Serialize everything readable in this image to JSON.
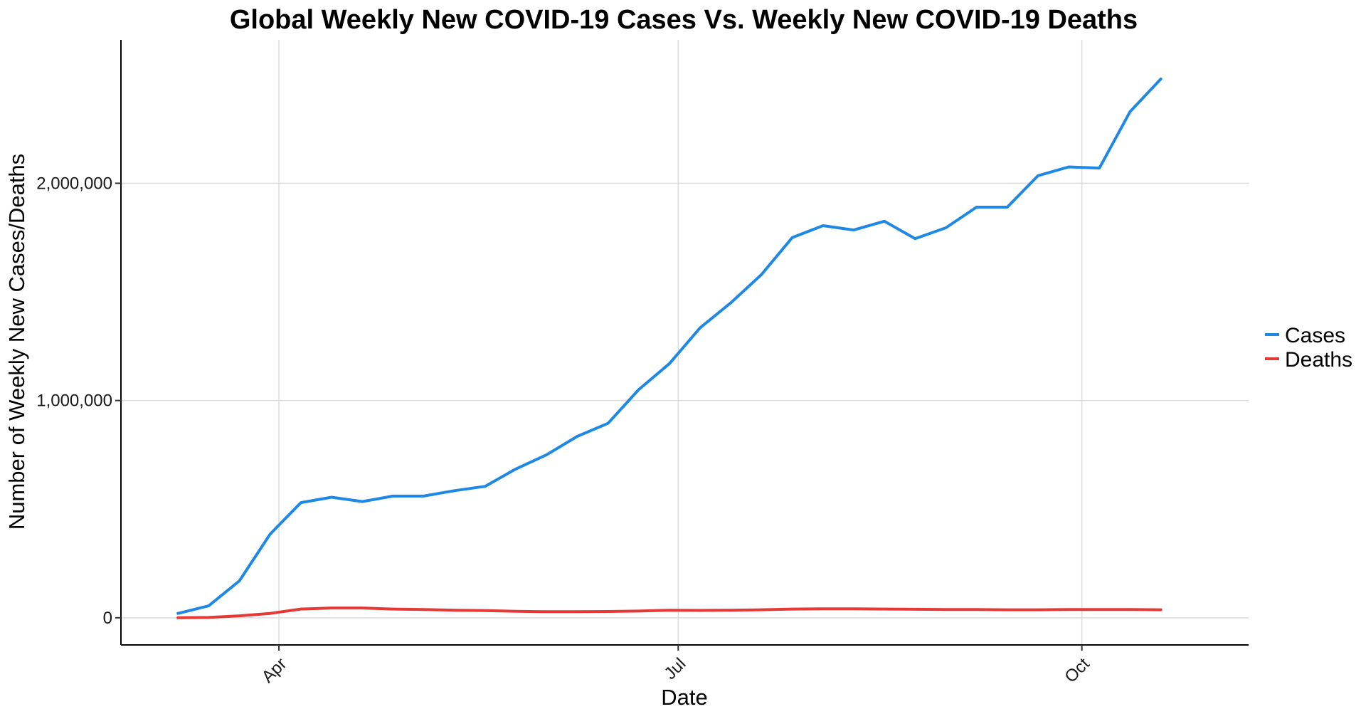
{
  "chart_data": {
    "type": "line",
    "title": "Global Weekly New COVID-19 Cases Vs. Weekly New COVID-19 Deaths",
    "xlabel": "Date",
    "ylabel": "Number of Weekly New Cases/Deaths",
    "x_ticks": [
      {
        "label": "Apr",
        "date": "2020-04-01"
      },
      {
        "label": "Jul",
        "date": "2020-07-01"
      },
      {
        "label": "Oct",
        "date": "2020-10-01"
      }
    ],
    "y_ticks": [
      {
        "label": "0",
        "value": 0
      },
      {
        "label": "1,000,000",
        "value": 1000000
      },
      {
        "label": "2,000,000",
        "value": 2000000
      }
    ],
    "xlim": [
      "2020-02-25",
      "2020-11-08"
    ],
    "ylim": [
      -125000,
      2660000
    ],
    "grid": true,
    "legend_position": "right",
    "x": [
      "2020-03-09",
      "2020-03-16",
      "2020-03-23",
      "2020-03-30",
      "2020-04-06",
      "2020-04-13",
      "2020-04-20",
      "2020-04-27",
      "2020-05-04",
      "2020-05-11",
      "2020-05-18",
      "2020-05-25",
      "2020-06-01",
      "2020-06-08",
      "2020-06-15",
      "2020-06-22",
      "2020-06-29",
      "2020-07-06",
      "2020-07-13",
      "2020-07-20",
      "2020-07-27",
      "2020-08-03",
      "2020-08-10",
      "2020-08-17",
      "2020-08-24",
      "2020-08-31",
      "2020-09-07",
      "2020-09-14",
      "2020-09-21",
      "2020-09-28",
      "2020-10-05",
      "2020-10-12",
      "2020-10-19"
    ],
    "series": [
      {
        "name": "Cases",
        "color": "#1e88e5",
        "values": [
          20000,
          55000,
          170000,
          385000,
          530000,
          555000,
          535000,
          560000,
          560000,
          585000,
          605000,
          685000,
          750000,
          835000,
          895000,
          1050000,
          1170000,
          1335000,
          1450000,
          1580000,
          1750000,
          1805000,
          1785000,
          1825000,
          1745000,
          1795000,
          1890000,
          1890000,
          2035000,
          2075000,
          2070000,
          2330000,
          2480000
        ]
      },
      {
        "name": "Deaths",
        "color": "#e53935",
        "values": [
          0,
          1500,
          9000,
          20000,
          40000,
          45000,
          45000,
          40000,
          38000,
          35000,
          33000,
          30000,
          28000,
          28000,
          29000,
          31000,
          35000,
          34000,
          35000,
          37000,
          40000,
          41000,
          41000,
          40000,
          39000,
          38000,
          38000,
          37000,
          37000,
          38000,
          38000,
          38000,
          37000
        ]
      }
    ]
  }
}
